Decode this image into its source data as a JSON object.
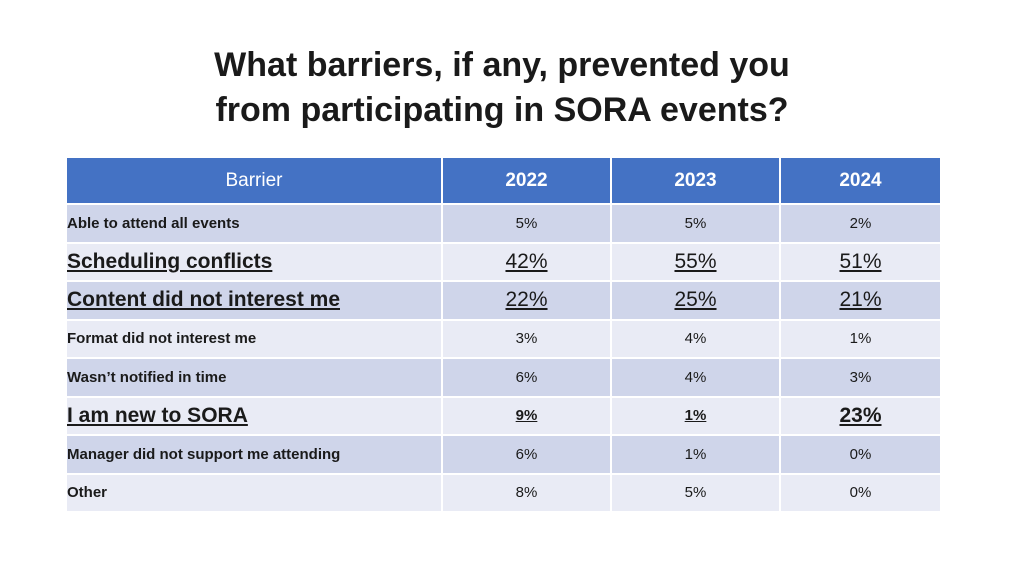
{
  "title": {
    "line1": "What barriers, if any, prevented you",
    "line2": "from participating in SORA events?"
  },
  "table": {
    "headers": [
      "Barrier",
      "2022",
      "2023",
      "2024"
    ],
    "rows": [
      {
        "barrier": "Able to attend all events",
        "values": [
          "5%",
          "5%",
          "2%"
        ]
      },
      {
        "barrier": "Scheduling conflicts",
        "values": [
          "42%",
          "55%",
          "51%"
        ]
      },
      {
        "barrier": "Content did not interest me",
        "values": [
          "22%",
          "25%",
          "21%"
        ]
      },
      {
        "barrier": "Format did not interest me",
        "values": [
          "3%",
          "4%",
          "1%"
        ]
      },
      {
        "barrier": "Wasn’t notified in time",
        "values": [
          "6%",
          "4%",
          "3%"
        ]
      },
      {
        "barrier": "I am new to SORA",
        "values": [
          "9%",
          "1%",
          "23%"
        ]
      },
      {
        "barrier": "Manager did not support me attending",
        "values": [
          "6%",
          "1%",
          "0%"
        ]
      },
      {
        "barrier": "Other",
        "values": [
          "8%",
          "5%",
          "0%"
        ]
      }
    ]
  },
  "colors": {
    "header_bg": "#4472c4",
    "row_dark": "#cfd5ea",
    "row_light": "#e9ebf5"
  }
}
